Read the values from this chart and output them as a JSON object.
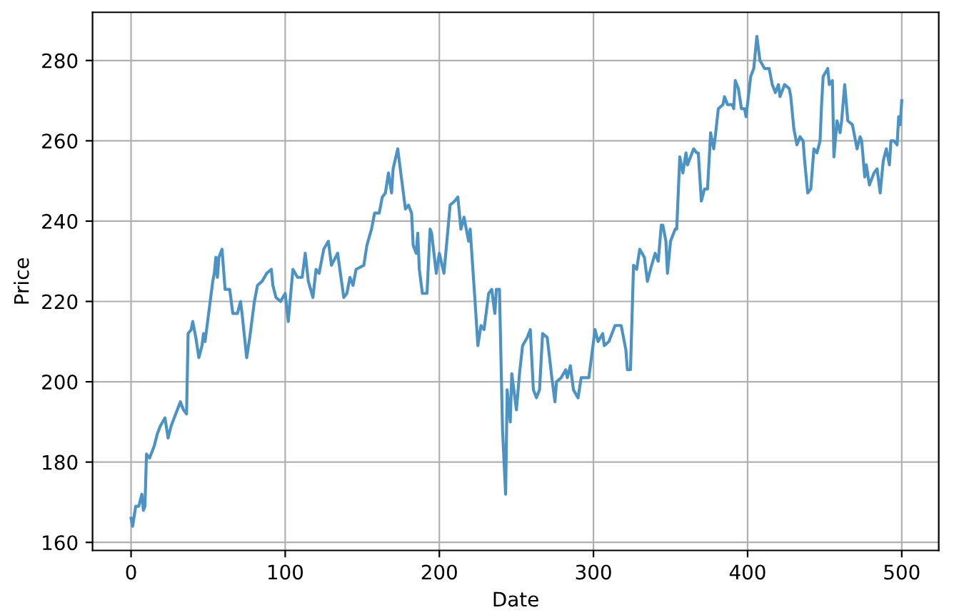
{
  "chart_data": {
    "type": "line",
    "xlabel": "Date",
    "ylabel": "Price",
    "x": [
      0,
      1,
      3,
      5,
      7,
      8,
      9,
      10,
      12,
      13,
      15,
      17,
      19,
      22,
      24,
      26,
      29,
      32,
      34,
      36,
      37,
      39,
      40,
      42,
      44,
      46,
      47,
      48,
      51,
      53,
      54,
      55,
      56,
      57,
      59,
      61,
      64,
      66,
      69,
      71,
      72,
      75,
      77,
      80,
      82,
      85,
      88,
      91,
      92,
      94,
      97,
      100,
      102,
      105,
      108,
      111,
      113,
      115,
      118,
      120,
      122,
      125,
      128,
      130,
      134,
      138,
      140,
      142,
      144,
      146,
      151,
      153,
      156,
      158,
      161,
      163,
      165,
      167,
      169,
      170,
      173,
      175,
      178,
      180,
      182,
      183,
      185,
      186,
      187,
      189,
      192,
      194,
      195,
      198,
      200,
      203,
      207,
      210,
      212,
      214,
      216,
      219,
      220,
      223,
      225,
      227,
      229,
      232,
      234,
      236,
      237,
      239,
      241,
      243,
      244,
      246,
      247,
      250,
      252,
      254,
      257,
      259,
      261,
      263,
      265,
      267,
      270,
      273,
      275,
      276,
      279,
      282,
      283,
      285,
      287,
      290,
      292,
      295,
      297,
      301,
      303,
      306,
      307,
      310,
      314,
      318,
      321,
      322,
      324,
      326,
      328,
      330,
      333,
      335,
      337,
      340,
      342,
      344,
      345,
      347,
      348,
      350,
      353,
      354,
      356,
      358,
      360,
      361,
      365,
      367,
      368,
      370,
      372,
      374,
      376,
      378,
      379,
      381,
      384,
      385,
      387,
      390,
      391,
      392,
      394,
      396,
      398,
      399,
      402,
      404,
      406,
      408,
      411,
      414,
      416,
      418,
      420,
      421,
      424,
      427,
      428,
      430,
      432,
      434,
      436,
      437,
      439,
      441,
      443,
      445,
      447,
      448,
      449,
      452,
      453,
      455,
      456,
      458,
      460,
      461,
      463,
      465,
      468,
      469,
      471,
      473,
      474,
      476,
      477,
      479,
      482,
      484,
      486,
      488,
      490,
      492,
      493,
      495,
      497,
      498,
      499,
      500
    ],
    "series": [
      {
        "color": "#4c92c3",
        "values": [
          166,
          164,
          169,
          169,
          172,
          168,
          169,
          182,
          181,
          182,
          184,
          187,
          189,
          191,
          186,
          189,
          192,
          195,
          193,
          192,
          212,
          213,
          215,
          211,
          206,
          209,
          212,
          210,
          219,
          225,
          227,
          231,
          226,
          231,
          233,
          223,
          223,
          217,
          217,
          220,
          217,
          206,
          211,
          220,
          224,
          225,
          227,
          228,
          224,
          221,
          220,
          222,
          215,
          228,
          226,
          226,
          232,
          225,
          221,
          228,
          227,
          233,
          235,
          229,
          232,
          221,
          222,
          226,
          224,
          228,
          229,
          234,
          238,
          242,
          242,
          246,
          247,
          252,
          247,
          253,
          258,
          252,
          243,
          244,
          242,
          234,
          232,
          237,
          228,
          222,
          222,
          238,
          237,
          227,
          232,
          227,
          244,
          245,
          246,
          238,
          241,
          235,
          238,
          221,
          209,
          214,
          213,
          222,
          223,
          217,
          223,
          223,
          188,
          172,
          198,
          190,
          202,
          193,
          202,
          209,
          211,
          213,
          198,
          196,
          198,
          212,
          211,
          201,
          195,
          200,
          201,
          203,
          201,
          204,
          198,
          196,
          201,
          201,
          201,
          213,
          210,
          212,
          209,
          210,
          214,
          214,
          208,
          203,
          203,
          229,
          228,
          233,
          231,
          225,
          228,
          232,
          230,
          239,
          239,
          235,
          227,
          235,
          238,
          238,
          256,
          252,
          257,
          254,
          258,
          257,
          257,
          245,
          248,
          248,
          262,
          258,
          261,
          268,
          269,
          271,
          269,
          269,
          268,
          275,
          273,
          268,
          268,
          266,
          276,
          278,
          286,
          280,
          278,
          278,
          274,
          272,
          274,
          271,
          274,
          273,
          271,
          263,
          259,
          261,
          260,
          255,
          247,
          248,
          258,
          257,
          260,
          269,
          276,
          278,
          274,
          275,
          256,
          265,
          262,
          265,
          274,
          265,
          264,
          262,
          258,
          261,
          260,
          251,
          254,
          249,
          252,
          253,
          247,
          255,
          258,
          254,
          260,
          260,
          259,
          266,
          264,
          270
        ]
      }
    ],
    "xlim": [
      -25,
      524
    ],
    "ylim": [
      158,
      292
    ],
    "xticks": [
      0,
      100,
      200,
      300,
      400,
      500
    ],
    "yticks": [
      160,
      180,
      200,
      220,
      240,
      260,
      280
    ],
    "grid": true
  }
}
